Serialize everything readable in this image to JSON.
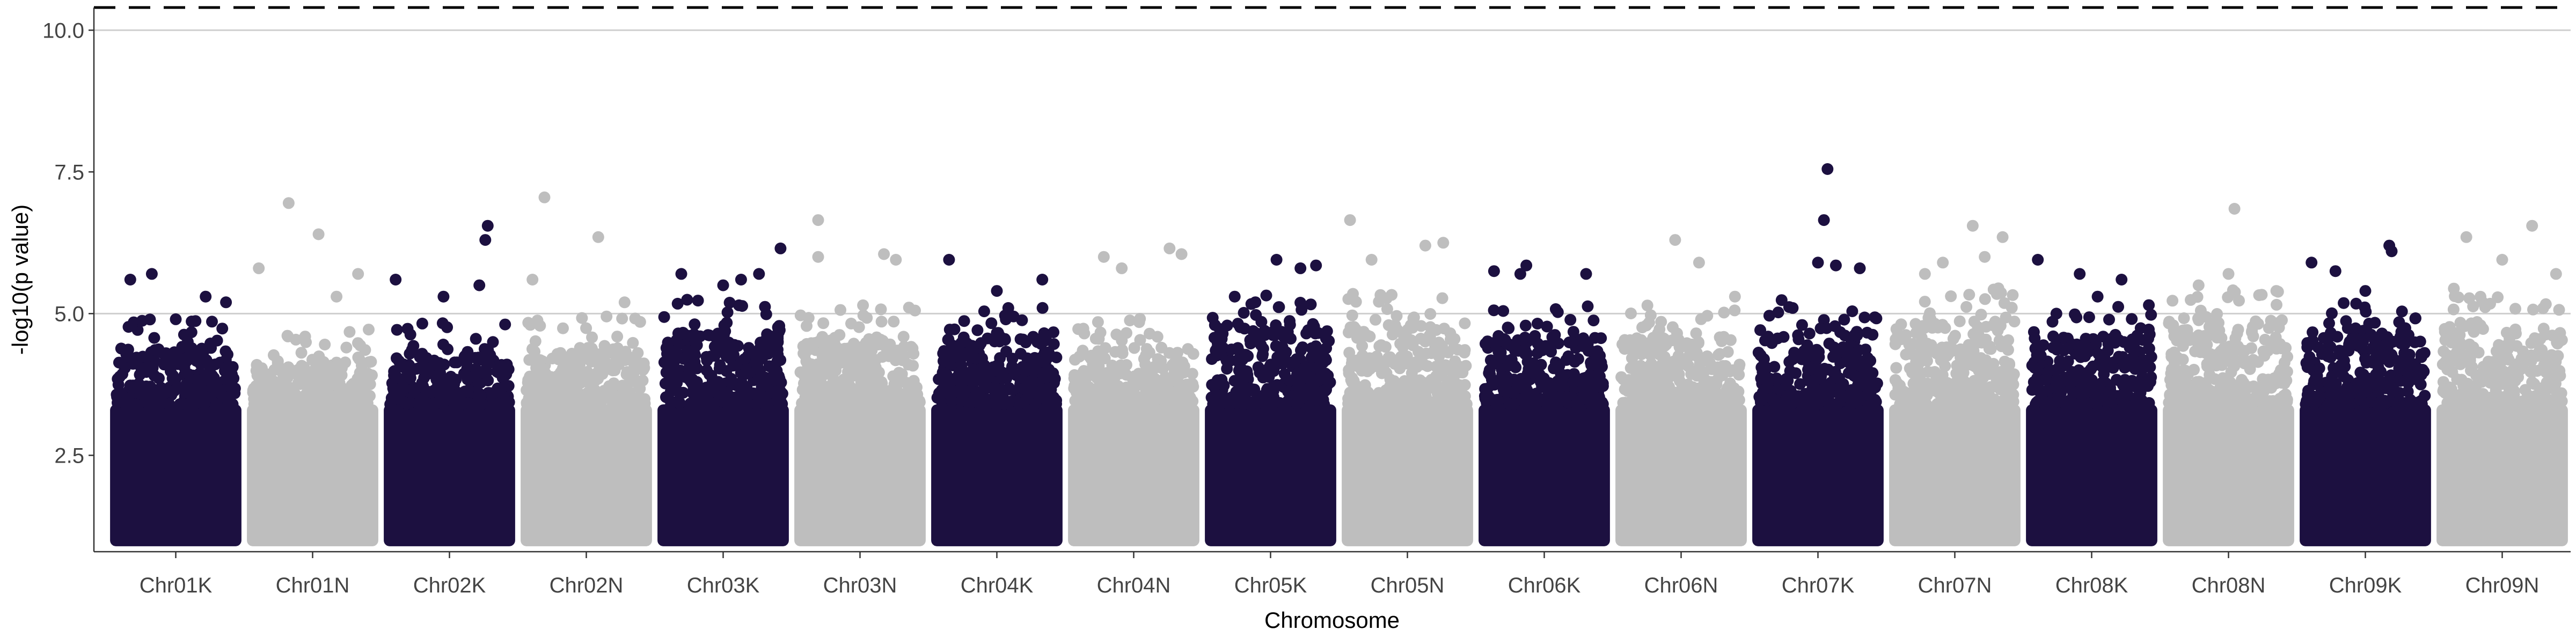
{
  "chart_data": {
    "type": "scatter",
    "subtype": "manhattan",
    "title": "",
    "xlabel": "Chromosome",
    "ylabel": "-log10(p value)",
    "ylim": [
      0.8,
      10.4
    ],
    "yticks": [
      2.5,
      5.0,
      7.5,
      10.0
    ],
    "ytick_labels": [
      "2.5",
      "5.0",
      "7.5",
      "10.0"
    ],
    "grid": "horizontal major",
    "reference_lines": [
      {
        "y": 10.4,
        "style": "dashed",
        "color": "#000000"
      },
      {
        "y": 10.0,
        "style": "solid",
        "color": "#cccccc"
      },
      {
        "y": 5.0,
        "style": "solid",
        "color": "#cccccc"
      }
    ],
    "point_colors": [
      "#1c1040",
      "#bebebe"
    ],
    "point_floor": 1.0,
    "categories": [
      "Chr01K",
      "Chr01N",
      "Chr02K",
      "Chr02N",
      "Chr03K",
      "Chr03N",
      "Chr04K",
      "Chr04N",
      "Chr05K",
      "Chr05N",
      "Chr06K",
      "Chr06N",
      "Chr07K",
      "Chr07N",
      "Chr08K",
      "Chr08N",
      "Chr09K",
      "Chr09N"
    ],
    "series": [
      {
        "chromosome": "Chr01K",
        "color_index": 0,
        "dense_max": 4.4,
        "peaks": [
          [
            0.12,
            5.6
          ],
          [
            0.3,
            5.7
          ],
          [
            0.5,
            4.9
          ],
          [
            0.75,
            5.3
          ],
          [
            0.92,
            5.2
          ]
        ]
      },
      {
        "chromosome": "Chr01N",
        "color_index": 1,
        "dense_max": 4.2,
        "peaks": [
          [
            0.05,
            5.8
          ],
          [
            0.3,
            6.95
          ],
          [
            0.55,
            6.4
          ],
          [
            0.7,
            5.3
          ],
          [
            0.88,
            5.7
          ]
        ]
      },
      {
        "chromosome": "Chr02K",
        "color_index": 0,
        "dense_max": 4.3,
        "peaks": [
          [
            0.05,
            5.6
          ],
          [
            0.45,
            5.3
          ],
          [
            0.75,
            5.5
          ],
          [
            0.8,
            6.3
          ],
          [
            0.82,
            6.55
          ]
        ]
      },
      {
        "chromosome": "Chr02N",
        "color_index": 1,
        "dense_max": 4.4,
        "peaks": [
          [
            0.05,
            5.6
          ],
          [
            0.15,
            7.05
          ],
          [
            0.6,
            6.35
          ],
          [
            0.82,
            5.2
          ]
        ]
      },
      {
        "chromosome": "Chr03K",
        "color_index": 0,
        "dense_max": 4.7,
        "peaks": [
          [
            0.15,
            5.7
          ],
          [
            0.5,
            5.5
          ],
          [
            0.65,
            5.6
          ],
          [
            0.8,
            5.7
          ],
          [
            0.98,
            6.15
          ]
        ]
      },
      {
        "chromosome": "Chr03N",
        "color_index": 1,
        "dense_max": 4.6,
        "peaks": [
          [
            0.15,
            6.65
          ],
          [
            0.15,
            6.0
          ],
          [
            0.7,
            6.05
          ],
          [
            0.8,
            5.95
          ]
        ]
      },
      {
        "chromosome": "Chr04K",
        "color_index": 0,
        "dense_max": 4.6,
        "peaks": [
          [
            0.1,
            5.95
          ],
          [
            0.5,
            5.4
          ],
          [
            0.88,
            5.6
          ]
        ]
      },
      {
        "chromosome": "Chr04N",
        "color_index": 1,
        "dense_max": 4.4,
        "peaks": [
          [
            0.25,
            6.0
          ],
          [
            0.4,
            5.8
          ],
          [
            0.8,
            6.15
          ],
          [
            0.9,
            6.05
          ]
        ]
      },
      {
        "chromosome": "Chr05K",
        "color_index": 0,
        "dense_max": 4.8,
        "peaks": [
          [
            0.2,
            5.3
          ],
          [
            0.55,
            5.95
          ],
          [
            0.75,
            5.8
          ],
          [
            0.88,
            5.85
          ]
        ]
      },
      {
        "chromosome": "Chr05N",
        "color_index": 1,
        "dense_max": 4.8,
        "peaks": [
          [
            0.02,
            6.65
          ],
          [
            0.2,
            5.95
          ],
          [
            0.65,
            6.2
          ],
          [
            0.8,
            6.25
          ]
        ]
      },
      {
        "chromosome": "Chr06K",
        "color_index": 0,
        "dense_max": 4.6,
        "peaks": [
          [
            0.08,
            5.75
          ],
          [
            0.3,
            5.7
          ],
          [
            0.35,
            5.85
          ],
          [
            0.85,
            5.7
          ]
        ]
      },
      {
        "chromosome": "Chr06N",
        "color_index": 1,
        "dense_max": 4.6,
        "peaks": [
          [
            0.45,
            6.3
          ],
          [
            0.65,
            5.9
          ],
          [
            0.95,
            5.3
          ]
        ]
      },
      {
        "chromosome": "Chr07K",
        "color_index": 0,
        "dense_max": 4.7,
        "peaks": [
          [
            0.5,
            5.9
          ],
          [
            0.55,
            6.65
          ],
          [
            0.58,
            7.55
          ],
          [
            0.65,
            5.85
          ],
          [
            0.85,
            5.8
          ]
        ]
      },
      {
        "chromosome": "Chr07N",
        "color_index": 1,
        "dense_max": 4.9,
        "peaks": [
          [
            0.25,
            5.7
          ],
          [
            0.4,
            5.9
          ],
          [
            0.65,
            6.55
          ],
          [
            0.75,
            6.0
          ],
          [
            0.9,
            6.35
          ]
        ]
      },
      {
        "chromosome": "Chr08K",
        "color_index": 0,
        "dense_max": 4.6,
        "peaks": [
          [
            0.05,
            5.95
          ],
          [
            0.4,
            5.7
          ],
          [
            0.55,
            5.3
          ],
          [
            0.75,
            5.6
          ]
        ]
      },
      {
        "chromosome": "Chr08N",
        "color_index": 1,
        "dense_max": 4.9,
        "peaks": [
          [
            0.25,
            5.5
          ],
          [
            0.5,
            5.7
          ],
          [
            0.55,
            6.85
          ],
          [
            0.9,
            5.4
          ]
        ]
      },
      {
        "chromosome": "Chr09K",
        "color_index": 0,
        "dense_max": 4.7,
        "peaks": [
          [
            0.05,
            5.9
          ],
          [
            0.25,
            5.75
          ],
          [
            0.5,
            5.4
          ],
          [
            0.7,
            6.2
          ],
          [
            0.72,
            6.1
          ]
        ]
      },
      {
        "chromosome": "Chr09N",
        "color_index": 1,
        "dense_max": 4.9,
        "peaks": [
          [
            0.2,
            6.35
          ],
          [
            0.5,
            5.95
          ],
          [
            0.75,
            6.55
          ],
          [
            0.95,
            5.7
          ]
        ]
      }
    ]
  }
}
